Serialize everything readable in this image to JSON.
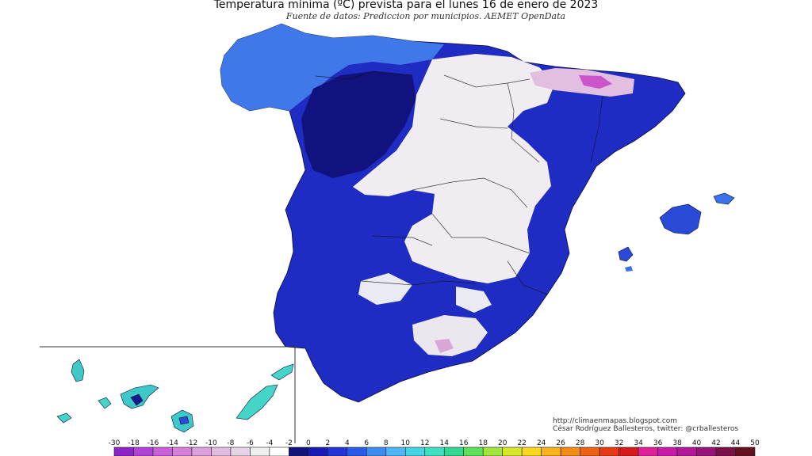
{
  "title": "Temperatura mínima (ºC) prevista para el lunes 16 de enero de 2023",
  "subtitle": "Fuente de datos: Prediccion por municipios. AEMET OpenData",
  "credits": {
    "line1": "http://climaenmapas.blogspot.com",
    "line2": "César Rodríguez Ballesteros, twitter: @crballesteros"
  },
  "scale": {
    "ticks": [
      "-30",
      "-18",
      "-16",
      "-14",
      "-12",
      "-10",
      "-8",
      "-6",
      "-4",
      "-2",
      "0",
      "2",
      "4",
      "6",
      "8",
      "10",
      "12",
      "14",
      "16",
      "18",
      "20",
      "22",
      "24",
      "26",
      "28",
      "30",
      "32",
      "34",
      "36",
      "38",
      "40",
      "42",
      "44",
      "50"
    ],
    "colors": [
      "#8e24c8",
      "#b042d6",
      "#c860da",
      "#d57fd9",
      "#dca0dc",
      "#e2bce0",
      "#e6d3e6",
      "#eeeeee",
      "#ffffff",
      "#12127a",
      "#1a1ab4",
      "#2233d8",
      "#2a5ae8",
      "#3f8cf0",
      "#4fb6f5",
      "#45d4e6",
      "#3fe0c0",
      "#35d890",
      "#5ee05a",
      "#a0e63c",
      "#d8e62a",
      "#f7d81e",
      "#f7b21e",
      "#f28c18",
      "#ec6216",
      "#e63a14",
      "#d81a1a",
      "#e0209a",
      "#c81aa8",
      "#b01898",
      "#981478",
      "#7a1048",
      "#62101e"
    ]
  },
  "colors": {
    "cold_dark": "#1a22b8",
    "cold_mid": "#2335d6",
    "cold_light": "#3a72e8",
    "frost": "#f0ecf2",
    "frost_pink": "#d9a6d8",
    "accent_magenta": "#cc55cc"
  }
}
